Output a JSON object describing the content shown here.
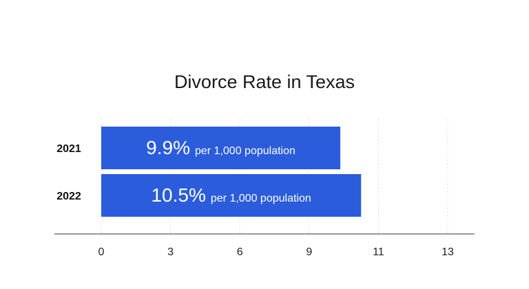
{
  "chart_data": {
    "type": "bar",
    "orientation": "horizontal",
    "title": "Divorce Rate in Texas",
    "categories": [
      "2021",
      "2022"
    ],
    "values": [
      9.9,
      10.5
    ],
    "value_labels": [
      "9.9%",
      "10.5%"
    ],
    "unit_label": "per 1,000 population",
    "x_ticks": [
      "0",
      "3",
      "6",
      "9",
      "11",
      "13"
    ],
    "xlim": [
      0,
      13
    ],
    "grid": "vertical dotted",
    "bar_color": "#2B5CDB"
  }
}
